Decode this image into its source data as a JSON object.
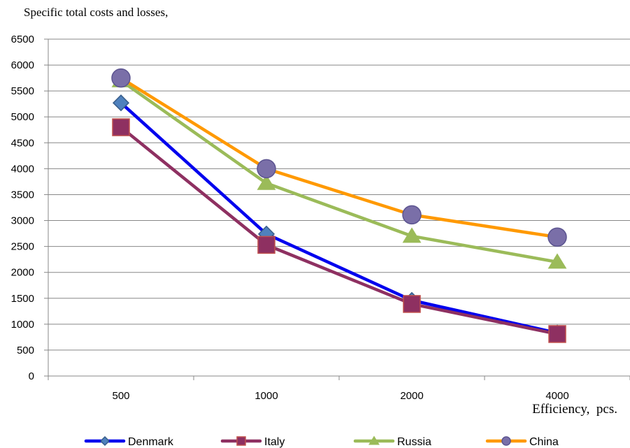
{
  "chart_data": {
    "type": "line",
    "title": "Specific total costs and losses,",
    "xlabel": "Efficiency,  pcs.",
    "ylabel": "",
    "categories": [
      "500",
      "1000",
      "2000",
      "4000"
    ],
    "ylim": [
      0,
      6500
    ],
    "yticks": [
      0,
      500,
      1000,
      1500,
      2000,
      2500,
      3000,
      3500,
      4000,
      4500,
      5000,
      5500,
      6000,
      6500
    ],
    "grid": true,
    "legend_position": "bottom",
    "series": [
      {
        "name": "Denmark",
        "values": [
          5270,
          2740,
          1460,
          830
        ],
        "color": "#0000ee",
        "marker": "diamond"
      },
      {
        "name": "Italy",
        "values": [
          4800,
          2530,
          1390,
          810
        ],
        "color": "#8e3061",
        "marker": "square",
        "marker_fill": "#8e3061",
        "marker_stroke": "#c0504d"
      },
      {
        "name": "Russia",
        "values": [
          5700,
          3720,
          2700,
          2200
        ],
        "color": "#9bbb59",
        "marker": "triangle",
        "marker_fill": "#9bbb59",
        "marker_stroke": "#9bbb59"
      },
      {
        "name": "China",
        "values": [
          5750,
          4000,
          3110,
          2680
        ],
        "color": "#ff9900",
        "marker": "circle",
        "marker_fill": "#7a6fa8",
        "marker_stroke": "#5c5490"
      }
    ]
  }
}
